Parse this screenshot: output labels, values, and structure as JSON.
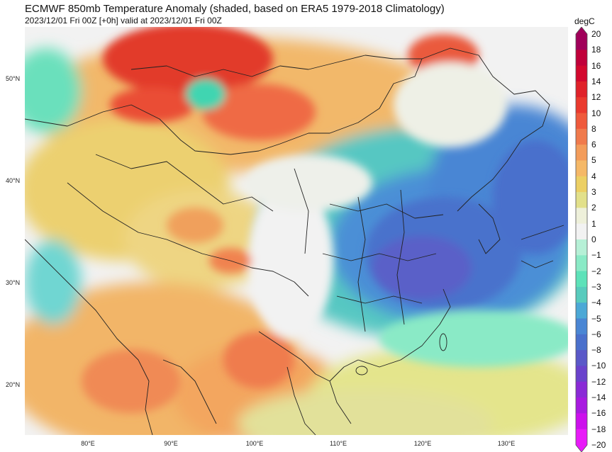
{
  "title": "ECMWF 850mb Temperature Anomaly (shaded, based on ERA5 1979-2018 Climatology)",
  "subtitle": "2023/12/01 Fri 00Z [+0h] valid at 2023/12/01 Fri 00Z",
  "colorbar": {
    "unit": "degC",
    "levels": [
      "20",
      "18",
      "16",
      "14",
      "12",
      "10",
      "8",
      "6",
      "5",
      "4",
      "3",
      "2",
      "1",
      "0",
      "−1",
      "−2",
      "−3",
      "−4",
      "−5",
      "−6",
      "−8",
      "−10",
      "−12",
      "−14",
      "−16",
      "−18",
      "−20"
    ],
    "colors": [
      "#a0005a",
      "#c0003a",
      "#d3082e",
      "#e0222a",
      "#ea3a2e",
      "#ef5a3c",
      "#f07a4c",
      "#f39c5a",
      "#f5b867",
      "#eccf63",
      "#e2e08a",
      "#eef0da",
      "#f2f2f2",
      "#b6f0d6",
      "#8aeac6",
      "#5de2b9",
      "#58cbbd",
      "#4ca8d6",
      "#4a86d4",
      "#4a70cc",
      "#5a58c8",
      "#6a42cc",
      "#8a2ad6",
      "#a81ae0",
      "#cc10ec",
      "#e81af8"
    ]
  },
  "map": {
    "lat_labels": [
      "50°N",
      "40°N",
      "30°N",
      "20°N"
    ],
    "lon_labels": [
      "80°E",
      "90°E",
      "100°E",
      "110°E",
      "120°E",
      "130°E"
    ]
  }
}
